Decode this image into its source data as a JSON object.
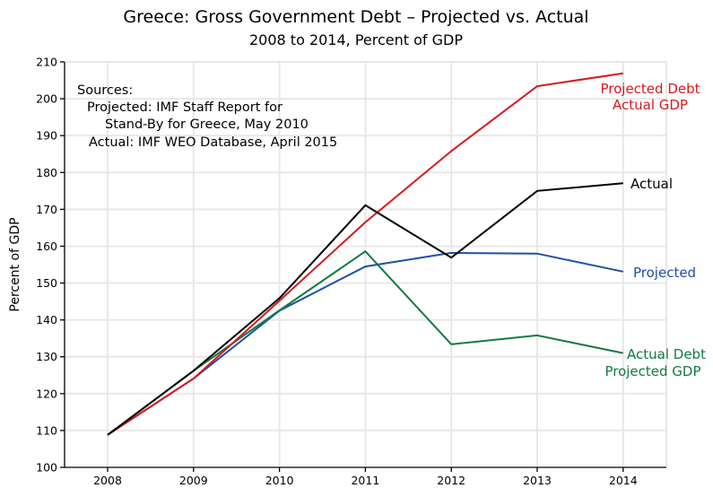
{
  "chart_data": {
    "type": "line",
    "title": "Greece:  Gross Government Debt – Projected vs. Actual",
    "subtitle": "2008 to 2014, Percent of GDP",
    "xlabel": "",
    "ylabel": "Percent of GDP",
    "x": [
      2008,
      2009,
      2010,
      2011,
      2012,
      2013,
      2014
    ],
    "x_tick_labels": [
      "2008",
      "2009",
      "2010",
      "2011",
      "2012",
      "2013",
      "2014"
    ],
    "ylim": [
      100,
      210
    ],
    "y_ticks": [
      100,
      110,
      120,
      130,
      140,
      150,
      160,
      170,
      180,
      190,
      200,
      210
    ],
    "y_tick_labels": [
      "100",
      "110",
      "120",
      "130",
      "140",
      "150",
      "160",
      "170",
      "180",
      "190",
      "200",
      "210"
    ],
    "grid": true,
    "legend": "inline-labels-right",
    "series": [
      {
        "name": "Projected Debt / Actual GDP",
        "label_lines": [
          "Projected Debt",
          "Actual GDP"
        ],
        "color": "#d7191c",
        "values": [
          108.8,
          124.1,
          145.2,
          166.5,
          185.8,
          203.4,
          206.9
        ]
      },
      {
        "name": "Actual",
        "label_lines": [
          "Actual"
        ],
        "color": "#000000",
        "values": [
          108.8,
          126.2,
          145.9,
          171.1,
          156.9,
          175.0,
          177.1
        ]
      },
      {
        "name": "Projected",
        "label_lines": [
          "Projected"
        ],
        "color": "#1f4fa8",
        "values": [
          108.8,
          124.1,
          142.5,
          154.5,
          158.2,
          158.0,
          153.1
        ]
      },
      {
        "name": "Actual Debt / Projected GDP",
        "label_lines": [
          "Actual Debt",
          "Projected GDP"
        ],
        "color": "#127a45",
        "values": [
          108.8,
          126.2,
          142.6,
          158.6,
          133.4,
          135.8,
          131.0
        ]
      }
    ],
    "annotations": [
      "Sources:",
      "Projected:  IMF Staff Report for",
      "Stand-By for Greece, May 2010",
      "Actual:  IMF WEO Database, April 2015"
    ]
  }
}
